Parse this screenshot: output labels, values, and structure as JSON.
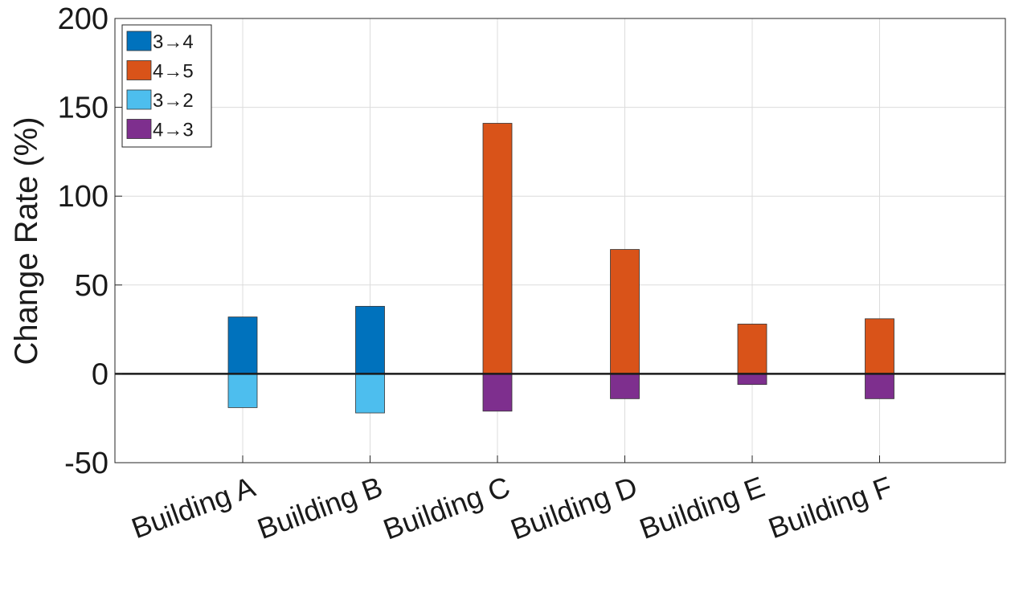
{
  "chart_data": {
    "type": "bar",
    "title": "",
    "xlabel": "",
    "ylabel": "Change Rate (%)",
    "ylim": [
      -50,
      200
    ],
    "yticks": [
      -50,
      0,
      50,
      100,
      150,
      200
    ],
    "ytick_labels": [
      "-50",
      "0",
      "50",
      "100",
      "150",
      "200"
    ],
    "grid": true,
    "legend_position": "top-left",
    "categories": [
      "Building A",
      "Building B",
      "Building C",
      "Building D",
      "Building E",
      "Building F"
    ],
    "series": [
      {
        "name": "3→4",
        "color": "#0072BD",
        "values": [
          32,
          38,
          null,
          null,
          null,
          null
        ]
      },
      {
        "name": "4→5",
        "color": "#D95319",
        "values": [
          null,
          null,
          141,
          70,
          28,
          31
        ]
      },
      {
        "name": "3→2",
        "color": "#4DBEEE",
        "values": [
          -19,
          -22,
          null,
          null,
          null,
          null
        ]
      },
      {
        "name": "4→3",
        "color": "#7E2F8E",
        "values": [
          null,
          null,
          -21,
          -14,
          -6,
          -14
        ]
      }
    ]
  }
}
